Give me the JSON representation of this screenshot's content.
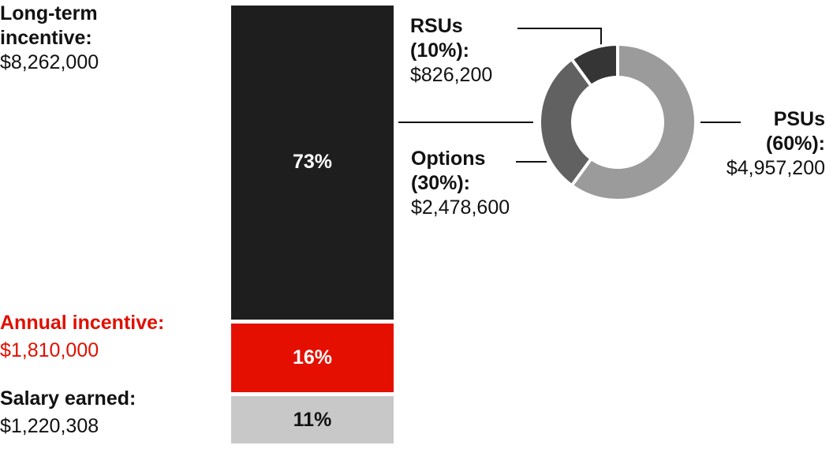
{
  "chart_data": [
    {
      "type": "bar",
      "stacked": true,
      "segments": [
        {
          "label": "Salary earned:",
          "amount": "$1,220,308",
          "percent_label": "11%",
          "percent": 11,
          "color": "#c8c8c8",
          "text_color": "#111111"
        },
        {
          "label": "Annual incentive:",
          "amount": "$1,810,000",
          "percent_label": "16%",
          "percent": 16,
          "color": "#e50f00",
          "text_color": "#ffffff"
        },
        {
          "label": "Long-term incentive:",
          "amount": "$8,262,000",
          "percent_label": "73%",
          "percent": 73,
          "color": "#1e1e1e",
          "text_color": "#ffffff"
        }
      ]
    },
    {
      "type": "pie",
      "donut": true,
      "slices": [
        {
          "label": "PSUs (60%):",
          "label_line1": "PSUs",
          "label_line2": "(60%):",
          "amount": "$4,957,200",
          "percent": 60,
          "color": "#9b9b9b"
        },
        {
          "label": "Options (30%):",
          "label_line1": "Options",
          "label_line2": "(30%):",
          "amount": "$2,478,600",
          "percent": 30,
          "color": "#616161"
        },
        {
          "label": "RSUs (10%):",
          "label_line1": "RSUs",
          "label_line2": "(10%):",
          "amount": "$826,200",
          "percent": 10,
          "color": "#353535"
        }
      ]
    }
  ]
}
